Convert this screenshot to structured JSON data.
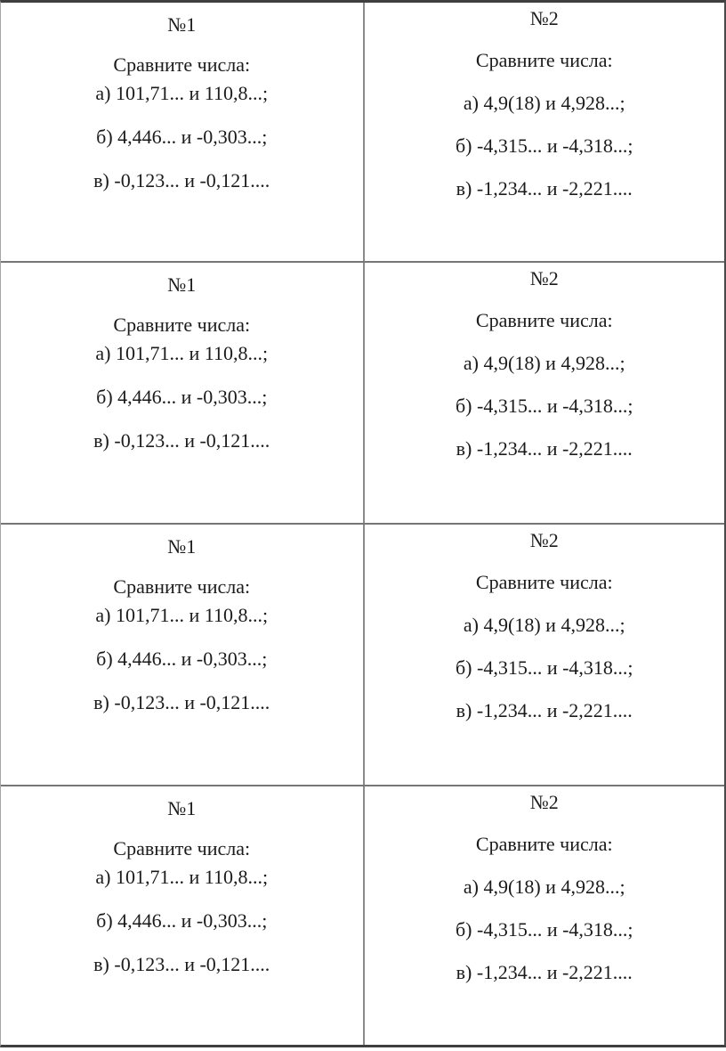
{
  "colors": {
    "background": "#ffffff",
    "text": "#1b1b1b",
    "border_outer": "#3f3f3f",
    "border_inner_horizontal": "#767676",
    "border_inner_vertical": "#8a8a8a"
  },
  "cards": {
    "card1": {
      "number": "№1",
      "prompt": "Сравните числа:",
      "items": [
        "а) 101,71... и 110,8...;",
        "б) 4,446... и -0,303...;",
        "в) -0,123... и -0,121...."
      ]
    },
    "card2": {
      "number": "№2",
      "prompt": "Сравните числа:",
      "items": [
        "а) 4,9(18) и 4,928...;",
        "б) -4,315... и -4,318...;",
        "в) -1,234... и -2,221...."
      ]
    }
  }
}
